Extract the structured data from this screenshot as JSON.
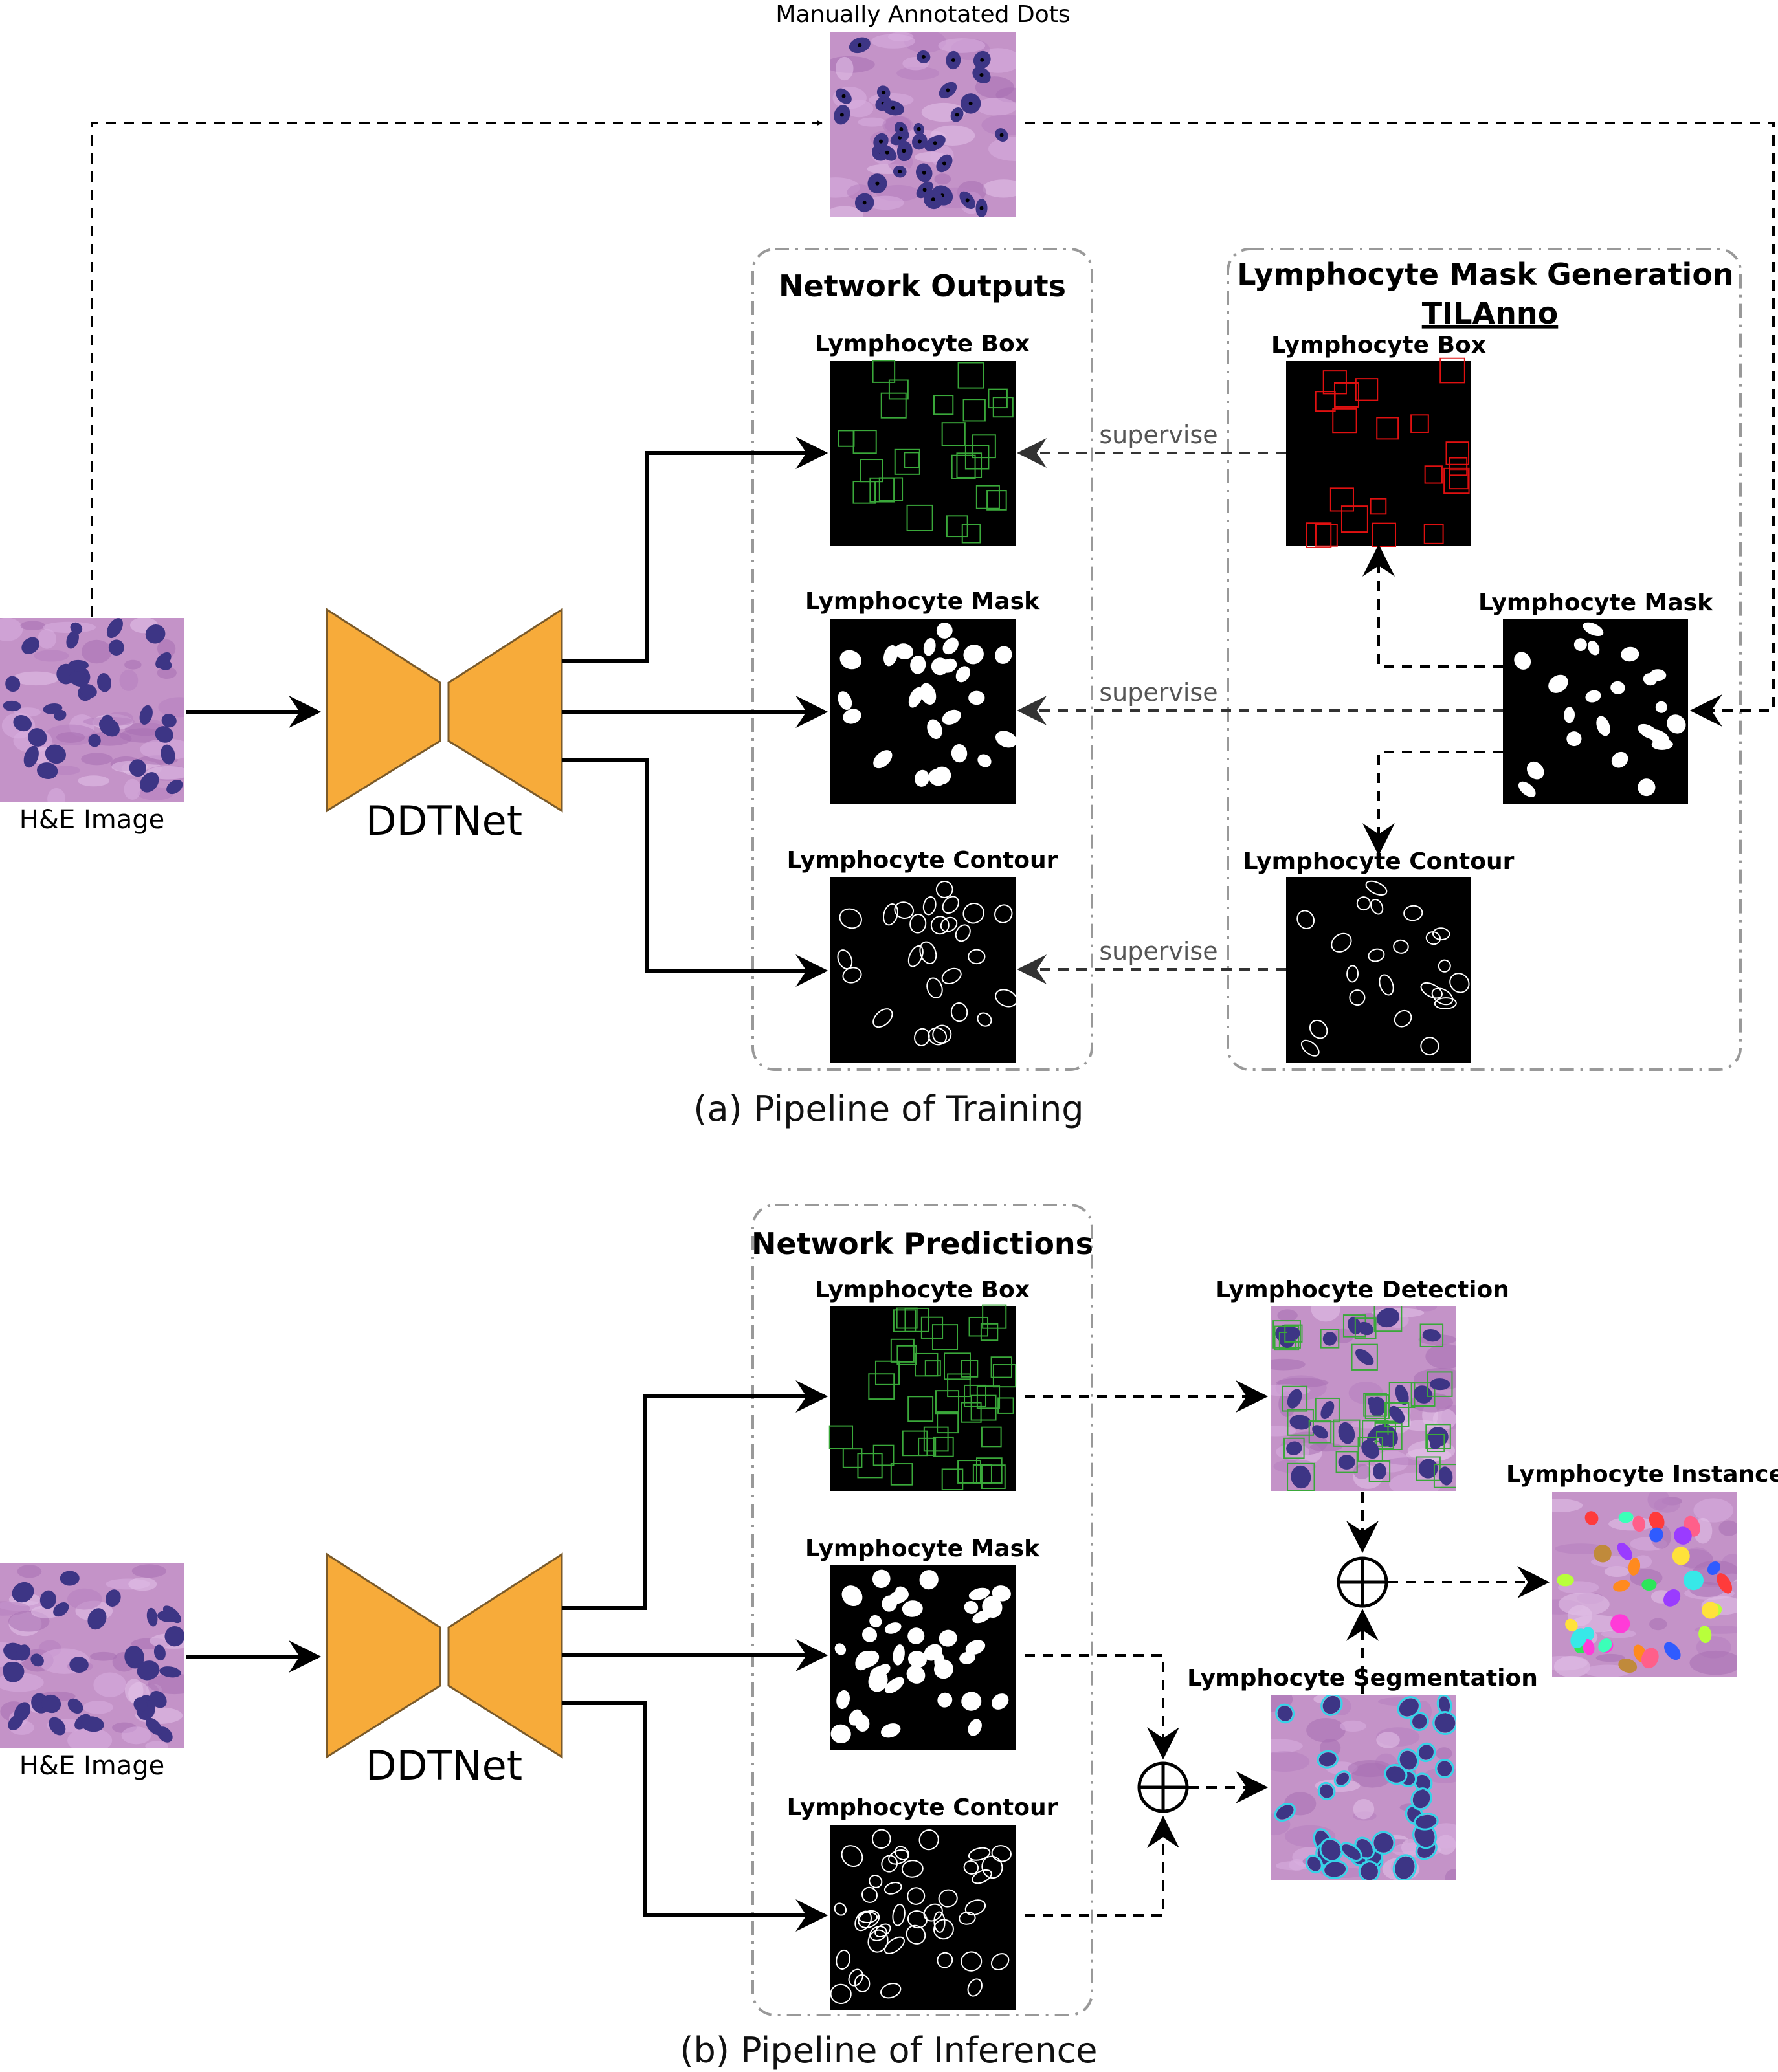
{
  "training": {
    "caption": "(a) Pipeline of Training",
    "input_label": "H&E Image",
    "network_label": "DDTNet",
    "dots_label": "Manually Annotated Dots",
    "outputs_title": "Network Outputs",
    "mask_gen_title": "Lymphocyte Mask Generation",
    "mask_gen_subtitle": "TILAnno",
    "box_label": "Lymphocyte Box",
    "mask_label": "Lymphocyte Mask",
    "contour_label": "Lymphocyte Contour",
    "gen_box_label": "Lymphocyte Box",
    "gen_mask_label": "Lymphocyte Mask",
    "gen_contour_label": "Lymphocyte Contour",
    "supervise": "supervise"
  },
  "inference": {
    "caption": "(b) Pipeline of Inference",
    "input_label": "H&E Image",
    "network_label": "DDTNet",
    "predictions_title": "Network Predictions",
    "box_label": "Lymphocyte Box",
    "mask_label": "Lymphocyte Mask",
    "contour_label": "Lymphocyte Contour",
    "detection_label": "Lymphocyte Detection",
    "segmentation_label": "Lymphocyte Segmentation",
    "instance_label": "Lymphocyte Instance"
  },
  "colors": {
    "network": "#f7ab3a",
    "box_green": "#3aa83a",
    "box_red": "#e01010",
    "tissue_bg": "#c493c8",
    "nucleus": "#3d3585",
    "seg_outline": "#35d4e8"
  }
}
